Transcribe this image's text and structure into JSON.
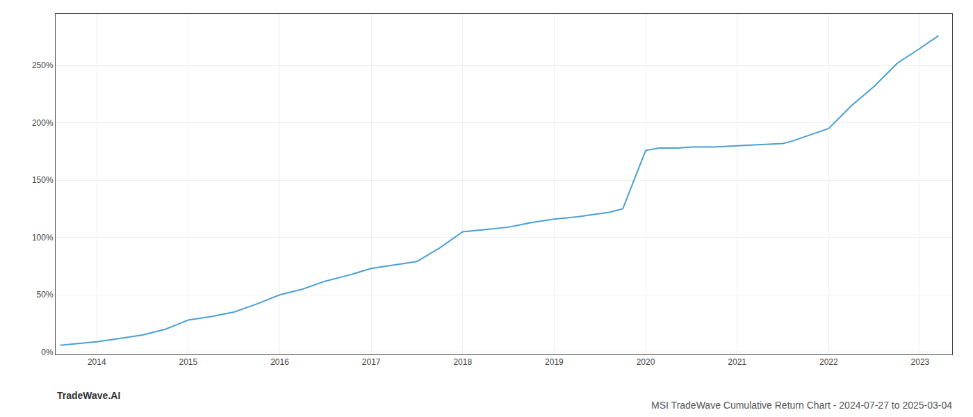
{
  "chart_data": {
    "type": "line",
    "title": "MSI TradeWave Cumulative Return Chart - 2024-07-27 to 2025-03-04",
    "annotations": [
      "TradeWave.AI"
    ],
    "x": [
      2013.6,
      2014.0,
      2014.25,
      2014.5,
      2014.75,
      2015.0,
      2015.25,
      2015.5,
      2015.75,
      2016.0,
      2016.25,
      2016.5,
      2016.75,
      2017.0,
      2017.25,
      2017.5,
      2017.75,
      2018.0,
      2018.25,
      2018.5,
      2018.75,
      2019.0,
      2019.25,
      2019.5,
      2019.6,
      2019.75,
      2020.0,
      2020.15,
      2020.35,
      2020.5,
      2020.75,
      2021.0,
      2021.25,
      2021.5,
      2021.6,
      2021.75,
      2022.0,
      2022.25,
      2022.5,
      2022.75,
      2023.0,
      2023.2
    ],
    "values": [
      0.06,
      0.09,
      0.12,
      0.15,
      0.2,
      0.28,
      0.31,
      0.35,
      0.42,
      0.5,
      0.55,
      0.62,
      0.67,
      0.73,
      0.76,
      0.79,
      0.91,
      1.05,
      1.07,
      1.09,
      1.13,
      1.16,
      1.18,
      1.21,
      1.22,
      1.25,
      1.76,
      1.78,
      1.78,
      1.79,
      1.79,
      1.8,
      1.81,
      1.82,
      1.84,
      1.88,
      1.95,
      2.15,
      2.32,
      2.52,
      2.65,
      2.76
    ],
    "color": "#4a9fd4",
    "xlim": [
      2013.55,
      2023.35
    ],
    "ylim": [
      -0.02,
      2.95
    ],
    "xticks": [
      2014,
      2015,
      2016,
      2017,
      2018,
      2019,
      2020,
      2021,
      2022,
      2023
    ],
    "yticks": [
      {
        "value": 0.0,
        "label": "0%"
      },
      {
        "value": 0.5,
        "label": "50%"
      },
      {
        "value": 1.0,
        "label": "100%"
      },
      {
        "value": 1.5,
        "label": "150%"
      },
      {
        "value": 2.0,
        "label": "200%"
      },
      {
        "value": 2.5,
        "label": "250%"
      }
    ],
    "grid": true
  }
}
